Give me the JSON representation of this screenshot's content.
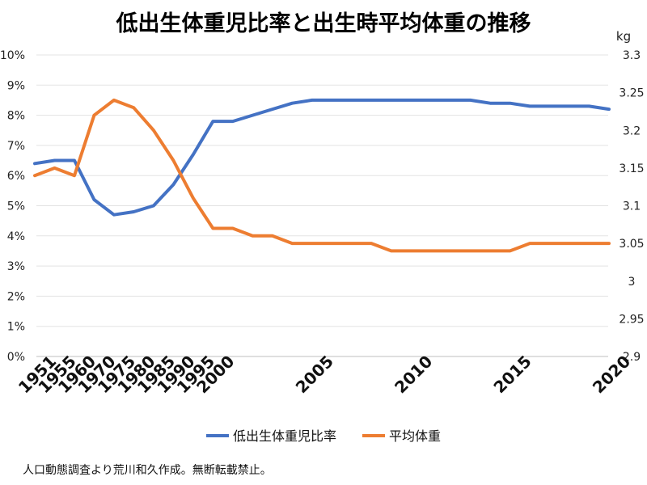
{
  "title": "低出生体重児比率と出生時平均体重の推移",
  "source_note": "人口動態調査より荒川和久作成。無断転載禁止。",
  "chart_data": {
    "type": "line",
    "title": "低出生体重児比率と出生時平均体重の推移",
    "x_ticks": [
      "1951",
      "1955",
      "1960",
      "1970",
      "1975",
      "1980",
      "1985",
      "1990",
      "1995",
      "2000",
      "2005",
      "2010",
      "2015",
      "2020"
    ],
    "y_left": {
      "ylim": [
        0,
        10
      ],
      "ticks": [
        0,
        1,
        2,
        3,
        4,
        5,
        6,
        7,
        8,
        9,
        10
      ],
      "tick_labels": [
        "0%",
        "1%",
        "2%",
        "3%",
        "4%",
        "5%",
        "6%",
        "7%",
        "8%",
        "9%",
        "10%"
      ]
    },
    "y_right": {
      "unit": "kg",
      "ylim": [
        2.9,
        3.3
      ],
      "ticks": [
        2.9,
        2.95,
        3.0,
        3.05,
        3.1,
        3.15,
        3.2,
        3.25,
        3.3
      ],
      "tick_labels": [
        "2.9",
        "2.95",
        "3",
        "3.05",
        "3.1",
        "3.15",
        "3.2",
        "3.25",
        "3.3"
      ]
    },
    "grid": true,
    "legend_position": "bottom",
    "series": [
      {
        "name": "低出生体重児比率",
        "axis": "left",
        "color": "#4472c4",
        "x": [
          1951,
          1955,
          1960,
          1970,
          1975,
          1980,
          1985,
          1990,
          1995,
          2000,
          2001,
          2002,
          2003,
          2004,
          2005,
          2006,
          2007,
          2008,
          2009,
          2010,
          2011,
          2012,
          2013,
          2014,
          2015,
          2016,
          2017,
          2018,
          2019,
          2020
        ],
        "values": [
          6.4,
          6.5,
          6.5,
          5.2,
          4.7,
          4.8,
          5.0,
          5.7,
          6.7,
          7.8,
          7.8,
          8.0,
          8.2,
          8.4,
          8.5,
          8.5,
          8.5,
          8.5,
          8.5,
          8.5,
          8.5,
          8.5,
          8.5,
          8.4,
          8.4,
          8.3,
          8.3,
          8.3,
          8.3,
          8.2
        ]
      },
      {
        "name": "平均体重",
        "axis": "right",
        "color": "#ed7d31",
        "x": [
          1951,
          1955,
          1960,
          1970,
          1975,
          1980,
          1985,
          1990,
          1995,
          2000,
          2001,
          2002,
          2003,
          2004,
          2005,
          2006,
          2007,
          2008,
          2009,
          2010,
          2011,
          2012,
          2013,
          2014,
          2015,
          2016,
          2017,
          2018,
          2019,
          2020
        ],
        "values": [
          3.14,
          3.15,
          3.14,
          3.22,
          3.24,
          3.23,
          3.2,
          3.16,
          3.11,
          3.07,
          3.07,
          3.06,
          3.06,
          3.05,
          3.05,
          3.05,
          3.05,
          3.05,
          3.04,
          3.04,
          3.04,
          3.04,
          3.04,
          3.04,
          3.04,
          3.05,
          3.05,
          3.05,
          3.05,
          3.05
        ]
      }
    ]
  }
}
